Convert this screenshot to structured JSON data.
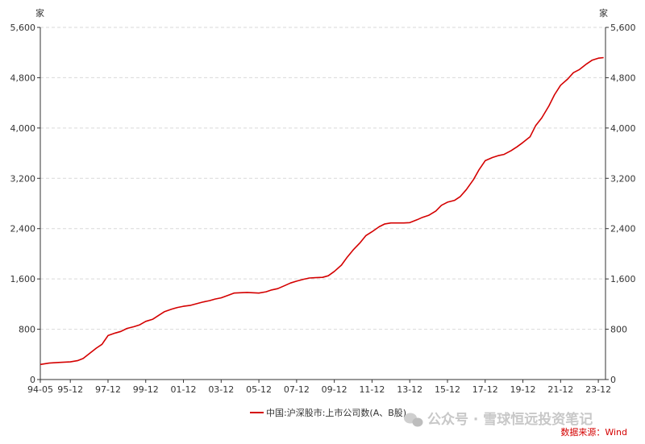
{
  "chart_data": {
    "type": "line",
    "unit_left": "家",
    "unit_right": "家",
    "y_ticks": [
      "0",
      "800",
      "1,600",
      "2,400",
      "3,200",
      "4,000",
      "4,800",
      "5,600"
    ],
    "y_tick_values": [
      0,
      800,
      1600,
      2400,
      3200,
      4000,
      4800,
      5600
    ],
    "ylim": [
      0,
      5600
    ],
    "x_ticks": [
      "94-05",
      "95-12",
      "97-12",
      "99-12",
      "01-12",
      "03-12",
      "05-12",
      "07-12",
      "09-12",
      "11-12",
      "13-12",
      "15-12",
      "17-12",
      "19-12",
      "21-12",
      "23-12"
    ],
    "x_tick_values": [
      1994.33,
      1995.92,
      1997.92,
      1999.92,
      2001.92,
      2003.92,
      2005.92,
      2007.92,
      2009.92,
      2011.92,
      2013.92,
      2015.92,
      2017.92,
      2019.92,
      2021.92,
      2023.92
    ],
    "xlim": [
      1994.33,
      2024.3
    ],
    "grid": "horizontal-dashed",
    "legend_position": "bottom",
    "series": [
      {
        "name": "中国:沪深股市:上市公司数(A、B股)",
        "color": "#d40000",
        "points": [
          [
            1994.33,
            240
          ],
          [
            1994.8,
            262
          ],
          [
            1995.3,
            272
          ],
          [
            1995.92,
            281
          ],
          [
            1996.3,
            300
          ],
          [
            1996.6,
            335
          ],
          [
            1996.92,
            410
          ],
          [
            1997.3,
            500
          ],
          [
            1997.6,
            560
          ],
          [
            1997.92,
            700
          ],
          [
            1998.3,
            740
          ],
          [
            1998.6,
            765
          ],
          [
            1998.92,
            812
          ],
          [
            1999.3,
            840
          ],
          [
            1999.6,
            870
          ],
          [
            1999.92,
            925
          ],
          [
            2000.3,
            960
          ],
          [
            2000.6,
            1020
          ],
          [
            2000.92,
            1080
          ],
          [
            2001.3,
            1120
          ],
          [
            2001.6,
            1145
          ],
          [
            2001.92,
            1165
          ],
          [
            2002.3,
            1180
          ],
          [
            2002.6,
            1205
          ],
          [
            2002.92,
            1230
          ],
          [
            2003.3,
            1255
          ],
          [
            2003.6,
            1280
          ],
          [
            2003.92,
            1300
          ],
          [
            2004.3,
            1340
          ],
          [
            2004.6,
            1375
          ],
          [
            2004.92,
            1380
          ],
          [
            2005.3,
            1385
          ],
          [
            2005.6,
            1380
          ],
          [
            2005.92,
            1375
          ],
          [
            2006.3,
            1395
          ],
          [
            2006.6,
            1425
          ],
          [
            2006.92,
            1445
          ],
          [
            2007.3,
            1495
          ],
          [
            2007.6,
            1535
          ],
          [
            2007.92,
            1565
          ],
          [
            2008.3,
            1595
          ],
          [
            2008.6,
            1615
          ],
          [
            2008.92,
            1620
          ],
          [
            2009.3,
            1625
          ],
          [
            2009.6,
            1650
          ],
          [
            2009.92,
            1720
          ],
          [
            2010.3,
            1820
          ],
          [
            2010.6,
            1945
          ],
          [
            2010.92,
            2060
          ],
          [
            2011.3,
            2180
          ],
          [
            2011.6,
            2290
          ],
          [
            2011.92,
            2350
          ],
          [
            2012.3,
            2430
          ],
          [
            2012.6,
            2475
          ],
          [
            2012.92,
            2490
          ],
          [
            2013.3,
            2490
          ],
          [
            2013.6,
            2490
          ],
          [
            2013.92,
            2495
          ],
          [
            2014.3,
            2540
          ],
          [
            2014.6,
            2580
          ],
          [
            2014.92,
            2610
          ],
          [
            2015.3,
            2680
          ],
          [
            2015.6,
            2770
          ],
          [
            2015.92,
            2820
          ],
          [
            2016.3,
            2850
          ],
          [
            2016.6,
            2910
          ],
          [
            2016.92,
            3020
          ],
          [
            2017.3,
            3180
          ],
          [
            2017.6,
            3340
          ],
          [
            2017.92,
            3480
          ],
          [
            2018.3,
            3530
          ],
          [
            2018.6,
            3560
          ],
          [
            2018.92,
            3580
          ],
          [
            2019.3,
            3640
          ],
          [
            2019.6,
            3700
          ],
          [
            2019.92,
            3770
          ],
          [
            2020.3,
            3860
          ],
          [
            2020.6,
            4040
          ],
          [
            2020.92,
            4160
          ],
          [
            2021.3,
            4350
          ],
          [
            2021.6,
            4530
          ],
          [
            2021.92,
            4680
          ],
          [
            2022.3,
            4780
          ],
          [
            2022.6,
            4880
          ],
          [
            2022.92,
            4930
          ],
          [
            2023.3,
            5020
          ],
          [
            2023.6,
            5080
          ],
          [
            2023.92,
            5110
          ],
          [
            2024.2,
            5120
          ]
        ]
      }
    ]
  },
  "legend": {
    "label": "中国:沪深股市:上市公司数(A、B股)"
  },
  "source": {
    "label": "数据来源：Wind"
  },
  "watermark": {
    "text": "公众号 · 雪球恒远投资笔记"
  },
  "icons": {
    "watermark_icon": "wechat-icon"
  }
}
